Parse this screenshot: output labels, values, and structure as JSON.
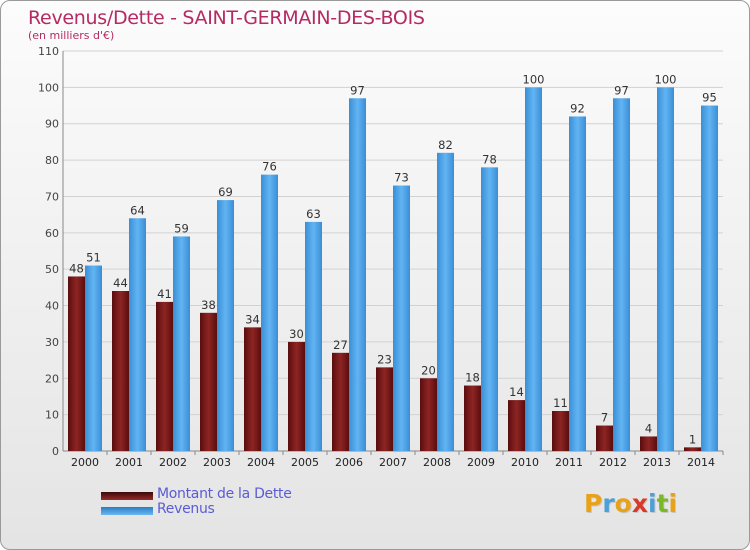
{
  "title": "Revenus/Dette - SAINT-GERMAIN-DES-BOIS",
  "subtitle": "(en milliers d'€)",
  "logo_text": "Proxiti",
  "colors": {
    "title": "#b52a63",
    "debt_bar": "#7a1a1a",
    "revenue_bar": "#48a0e6",
    "legend_text": "#5b5bd6",
    "grid": "#d0d0d0"
  },
  "chart_data": {
    "type": "bar",
    "title": "Revenus/Dette - SAINT-GERMAIN-DES-BOIS",
    "subtitle": "(en milliers d'€)",
    "categories": [
      "2000",
      "2001",
      "2002",
      "2003",
      "2004",
      "2005",
      "2006",
      "2007",
      "2008",
      "2009",
      "2010",
      "2011",
      "2012",
      "2013",
      "2014"
    ],
    "series": [
      {
        "name": "Montant de la Dette",
        "color": "#7a1a1a",
        "values": [
          48,
          44,
          41,
          38,
          34,
          30,
          27,
          23,
          20,
          18,
          14,
          11,
          7,
          4,
          1
        ]
      },
      {
        "name": "Revenus",
        "color": "#48a0e6",
        "values": [
          51,
          64,
          59,
          69,
          76,
          63,
          97,
          73,
          82,
          78,
          100,
          92,
          97,
          100,
          95
        ]
      }
    ],
    "ylim": [
      0,
      110
    ],
    "yticks": [
      0,
      10,
      20,
      30,
      40,
      50,
      60,
      70,
      80,
      90,
      100,
      110
    ],
    "grid": true,
    "legend_position": "bottom-left",
    "data_labels": true
  }
}
